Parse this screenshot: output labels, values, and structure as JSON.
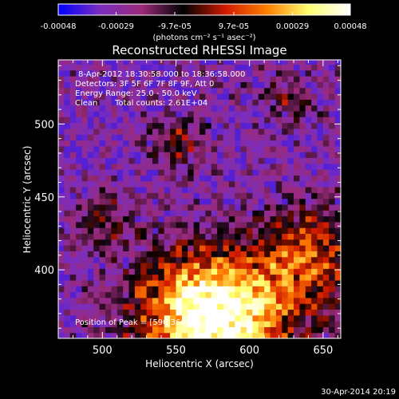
{
  "chart_data": {
    "type": "heatmap",
    "title": "Reconstructed RHESSI Image",
    "xlabel": "Heliocentric X (arcsec)",
    "ylabel": "Heliocentric Y (arcsec)",
    "xlim": [
      470,
      662
    ],
    "ylim": [
      353,
      544
    ],
    "x_ticks": [
      500,
      550,
      600,
      650
    ],
    "y_ticks": [
      400,
      450,
      500
    ],
    "colorbar": {
      "range": [
        -0.00048,
        0.00048
      ],
      "tick_values": [
        -0.00048,
        -0.00029,
        -9.7e-05,
        9.7e-05,
        0.00029,
        0.00048
      ],
      "tick_labels": [
        "-0.00048",
        "-0.00029",
        "-9.7e-05",
        "9.7e-05",
        "0.00029",
        "0.00048"
      ],
      "unit_label": "(photons cm⁻² s⁻¹ asec⁻²)",
      "colors": [
        "#0000ff",
        "#7a2dbf",
        "#9a2a7a",
        "#000000",
        "#d11a00",
        "#ff7f00",
        "#ffff70",
        "#ffffff"
      ]
    },
    "annotations": {
      "time_range": "8-Apr-2012 18:30:58.000 to 18:36:58.000",
      "detectors": "Detectors: 3F 5F 6F 7F 8F 9F, Att 0",
      "energy": "Energy Range: 25.0 - 50.0 keV",
      "method": "Clean",
      "counts": "Total counts: 2.61E+04",
      "peak": "Position of Peak = [590,366]"
    },
    "peak_position": [
      590,
      366
    ],
    "footer_date": "30-Apr-2014 20:19"
  }
}
